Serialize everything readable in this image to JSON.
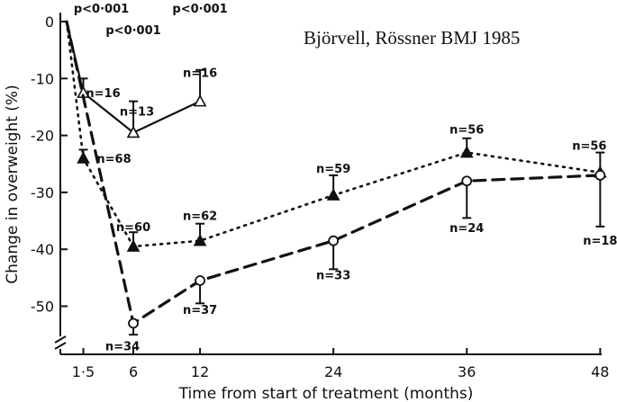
{
  "credit": "Björvell, Rössner BMJ 1985",
  "chart_data": {
    "type": "line",
    "title": "",
    "xlabel": "Time from start of treatment (months)",
    "ylabel": "Change in overweight (%)",
    "x_ticks": [
      "1·5",
      "6",
      "12",
      "24",
      "36",
      "48"
    ],
    "y_ticks": [
      "0",
      "-10",
      "-20",
      "-30",
      "-40",
      "-50"
    ],
    "xlim": [
      0,
      48
    ],
    "ylim": [
      -57,
      0
    ],
    "grid": false,
    "series": [
      {
        "marker": "open-triangle",
        "line_style": "solid",
        "points": [
          {
            "x": 0,
            "y": 0,
            "err": null,
            "label": ""
          },
          {
            "x": 1.5,
            "y": -12.5,
            "err": 2.5,
            "label": "n=16"
          },
          {
            "x": 6,
            "y": -19.5,
            "err": 5.5,
            "label": "n=13"
          },
          {
            "x": 12,
            "y": -14,
            "err": 5.5,
            "label": "n=16"
          }
        ]
      },
      {
        "marker": "filled-triangle",
        "line_style": "dotted",
        "points": [
          {
            "x": 0,
            "y": 0,
            "err": null,
            "label": ""
          },
          {
            "x": 1.5,
            "y": -24,
            "err": 1.5,
            "label": "n=68"
          },
          {
            "x": 6,
            "y": -39.5,
            "err": 2.5,
            "label": "n=60"
          },
          {
            "x": 12,
            "y": -38.5,
            "err": 3,
            "label": "n=62"
          },
          {
            "x": 24,
            "y": -30.5,
            "err": 3.5,
            "label": "n=59"
          },
          {
            "x": 36,
            "y": -23,
            "err": 2.5,
            "label": "n=56"
          },
          {
            "x": 48,
            "y": -26.5,
            "err": 3.5,
            "label": "n=56"
          }
        ]
      },
      {
        "marker": "open-circle",
        "line_style": "dashed",
        "points": [
          {
            "x": 0,
            "y": 0,
            "err": null,
            "label": ""
          },
          {
            "x": 6,
            "y": -53,
            "err": 2,
            "label": "n=34"
          },
          {
            "x": 12,
            "y": -45.5,
            "err": 4,
            "label": "n=37"
          },
          {
            "x": 24,
            "y": -38.5,
            "err": 5,
            "label": "n=33"
          },
          {
            "x": 36,
            "y": -28,
            "err": 6.5,
            "label": "n=24"
          },
          {
            "x": 48,
            "y": -27,
            "err": 9,
            "label": "n=18"
          }
        ]
      }
    ],
    "annotations": [
      {
        "text": "p<0·001",
        "x": 1.5
      },
      {
        "text": "p<0·001",
        "x": 6
      },
      {
        "text": "p<0·001",
        "x": 12
      }
    ]
  }
}
